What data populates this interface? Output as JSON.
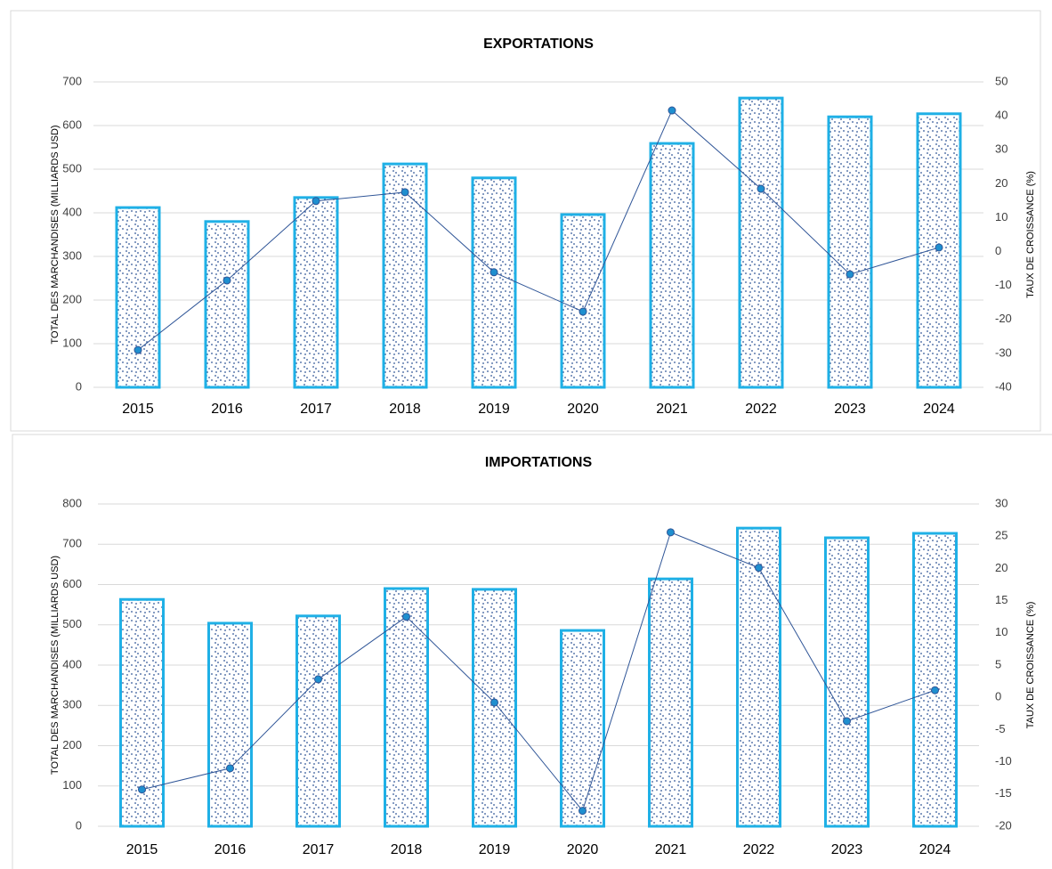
{
  "chart_data": [
    {
      "type": "bar-line",
      "title": "EXPORTATIONS",
      "y_label": "TOTAL DES MARCHANDISES (MILLIARDS USD)",
      "y2_label": "TAUX DE CROISSANCE (%)",
      "categories": [
        "2015",
        "2016",
        "2017",
        "2018",
        "2019",
        "2020",
        "2021",
        "2022",
        "2023",
        "2024"
      ],
      "series": [
        {
          "color": "#1fb0e6",
          "values": [
            412,
            380,
            435,
            512,
            480,
            396,
            559,
            663,
            620,
            627
          ]
        },
        {
          "color": "#2f5597",
          "axis": "y2",
          "values": [
            -29,
            -8.5,
            14.9,
            17.5,
            -6.1,
            -17.7,
            41.6,
            18.5,
            -6.7,
            1.2
          ]
        }
      ],
      "ylim": [
        0,
        700
      ],
      "yticks": [
        0,
        100,
        200,
        300,
        400,
        500,
        600,
        700
      ],
      "y2lim": [
        -40,
        50
      ],
      "y2ticks": [
        -40,
        -30,
        -20,
        -10,
        0,
        10,
        20,
        30,
        40,
        50
      ],
      "grid": true
    },
    {
      "type": "bar-line",
      "title": "IMPORTATIONS",
      "y_label": "TOTAL DES MARCHANDISES (MILLIARDS USD)",
      "y2_label": "TAUX DE CROISSANCE (%)",
      "categories": [
        "2015",
        "2016",
        "2017",
        "2018",
        "2019",
        "2020",
        "2021",
        "2022",
        "2023",
        "2024"
      ],
      "series": [
        {
          "color": "#1fb0e6",
          "values": [
            563,
            504,
            522,
            590,
            588,
            486,
            614,
            740,
            716,
            727
          ]
        },
        {
          "color": "#2f5597",
          "axis": "y2",
          "values": [
            -14.3,
            -11,
            2.8,
            12.5,
            -0.8,
            -17.6,
            25.6,
            20.1,
            -3.7,
            1.1
          ]
        }
      ],
      "ylim": [
        0,
        800
      ],
      "yticks": [
        0,
        100,
        200,
        300,
        400,
        500,
        600,
        700,
        800
      ],
      "y2lim": [
        -20,
        30
      ],
      "y2ticks": [
        -20,
        -15,
        -10,
        -5,
        0,
        5,
        10,
        15,
        20,
        25,
        30
      ],
      "grid": true
    }
  ]
}
